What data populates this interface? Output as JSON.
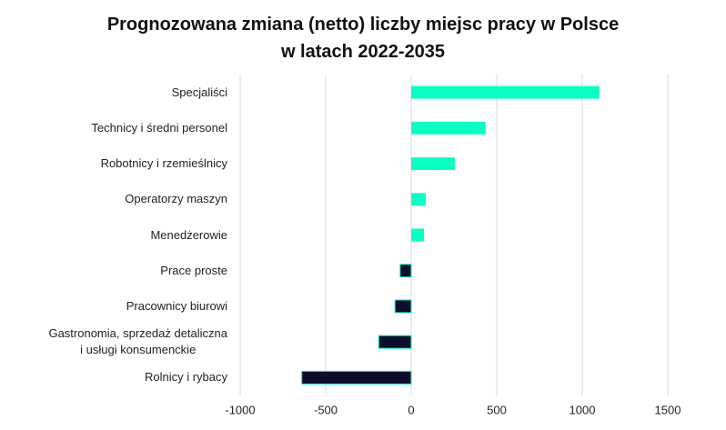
{
  "chart_data": {
    "type": "barh",
    "title": "Prognozowana zmiana (netto) liczby miejsc pracy w Polsce\nw latach 2022-2035",
    "categories": [
      "Specjaliści",
      "Technicy i średni personel",
      "Robotnicy i rzemieślnicy",
      "Operatorzy maszyn",
      "Menedżerowie",
      "Prace proste",
      "Pracownicy biurowi",
      "Gastronomia, sprzedaż detaliczna\ni usługi konsumenckie",
      "Rolnicy i rybacy"
    ],
    "values": [
      1100,
      435,
      255,
      85,
      75,
      -65,
      -95,
      -190,
      -640
    ],
    "positive_color": "#0affc2",
    "negative_color": "#0e0e2c",
    "xlim": [
      -1000,
      1500
    ],
    "xticks": [
      -1000,
      -500,
      0,
      500,
      1000,
      1500
    ],
    "grid": true
  }
}
